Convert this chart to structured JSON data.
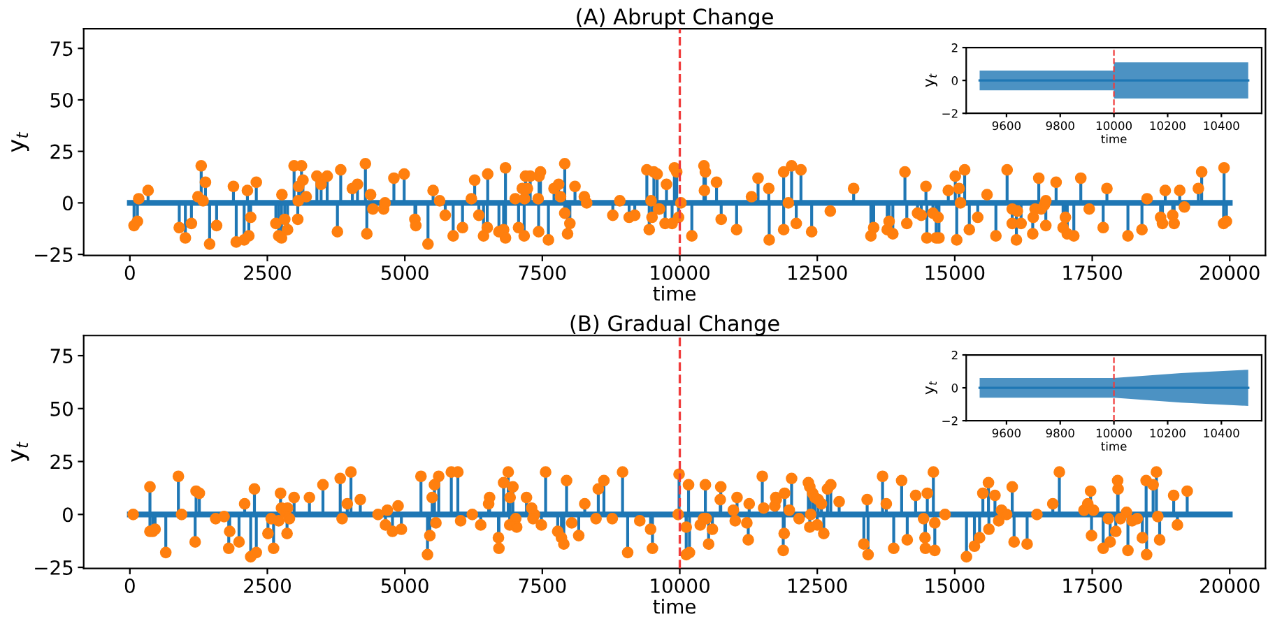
{
  "chart_data": [
    {
      "type": "line",
      "title": "(A) Abrupt Change",
      "xlabel": "time",
      "ylabel": "y$_{t}$",
      "xlim": [
        -840,
        20650
      ],
      "ylim": [
        -25.5,
        84.5
      ],
      "xticks": [
        0,
        2500,
        5000,
        7500,
        10000,
        12500,
        15000,
        17500,
        20000
      ],
      "yticks": [
        -25,
        0,
        25,
        50,
        75
      ],
      "ref_lines": [
        {
          "axis": "x",
          "value": 10000,
          "color": "#f03c3c",
          "line_style": "dashed"
        }
      ],
      "series": [
        {
          "type": "line",
          "color": "#1f77b4",
          "x": [
            0,
            20000
          ],
          "values": [
            0,
            0
          ]
        },
        {
          "type": "lollipop",
          "color": "#ff7f0e",
          "marker": "circle",
          "x": [
            76,
            137,
            161,
            331,
            898,
            1009,
            1119,
            1238,
            1297,
            1331,
            1374,
            1450,
            1577,
            1883,
            1934,
            2078,
            2137,
            2163,
            2197,
            2299,
            2655,
            2706,
            2757,
            2765,
            2816,
            2867,
            2986,
            3062,
            3070,
            3121,
            3147,
            3206,
            3053,
            3401,
            3477,
            3588,
            3774,
            3834,
            4046,
            4139,
            4283,
            4309,
            4377,
            4419,
            4614,
            4640,
            4801,
            4988,
            5183,
            5200,
            5421,
            5514,
            5633,
            5735,
            5879,
            6049,
            6210,
            6270,
            6346,
            6431,
            6499,
            6507,
            6711,
            6796,
            6830,
            6830,
            7008,
            7068,
            7136,
            7170,
            7178,
            7195,
            7229,
            7280,
            7424,
            7433,
            7441,
            7466,
            7611,
            7713,
            7797,
            7831,
            7908,
            7908,
            7959,
            8001,
            8094,
            8264,
            8307,
            8782,
            8909,
            9079,
            9181,
            9401,
            9444,
            9478,
            9495,
            9529,
            9588,
            9614,
            9631,
            9758,
            9733,
            9860,
            9902,
            9944,
            9978,
            10020,
            10219,
            10439,
            10465,
            10448,
            10668,
            10753,
            11033,
            11304,
            11423,
            11618,
            11626,
            11889,
            11889,
            11974,
            12033,
            12118,
            12203,
            12398,
            12737,
            13161,
            13475,
            13526,
            13772,
            13806,
            13874,
            14094,
            14128,
            14323,
            14391,
            14476,
            14493,
            14603,
            14662,
            14696,
            14713,
            14883,
            15010,
            15036,
            15078,
            15104,
            15180,
            15265,
            15418,
            15587,
            15748,
            15952,
            16045,
            16045,
            16121,
            16138,
            16206,
            16418,
            16427,
            16461,
            16528,
            16571,
            16630,
            16656,
            16656,
            16843,
            16970,
            17012,
            17046,
            17165,
            17292,
            17445,
            17699,
            17767,
            18149,
            18404,
            18497,
            18743,
            18777,
            18828,
            18963,
            18989,
            19091,
            19176,
            19430,
            19490,
            19897,
            19889,
            19940
          ],
          "values": [
            -11,
            -9,
            2,
            6,
            -12,
            -17,
            -10,
            3,
            18,
            1,
            10,
            -20,
            -11,
            8,
            -19,
            -18,
            6,
            -16,
            -7,
            10,
            -10,
            -16,
            -17,
            4,
            -8,
            -13,
            18,
            1,
            8,
            18,
            11,
            3,
            -8,
            13,
            9,
            13,
            -14,
            16,
            7,
            9,
            19,
            -15,
            4,
            -3,
            -3,
            0,
            12,
            14,
            -8,
            -11,
            -20,
            6,
            1,
            -6,
            -16,
            -12,
            2,
            11,
            -6,
            -16,
            -12,
            14,
            -14,
            -13,
            17,
            -17,
            2,
            -12,
            7,
            -16,
            2,
            13,
            7,
            13,
            2,
            -14,
            13,
            15,
            -18,
            7,
            9,
            3,
            19,
            -5,
            -15,
            -10,
            8,
            3,
            0,
            -6,
            1,
            -7,
            -6,
            16,
            -13,
            1,
            -7,
            15,
            14,
            -3,
            -3,
            9,
            -10,
            -10,
            17,
            15,
            -7,
            0,
            -16,
            18,
            15,
            6,
            10,
            -8,
            -13,
            3,
            12,
            7,
            -18,
            15,
            -13,
            0,
            18,
            -10,
            16,
            -14,
            -4,
            7,
            -16,
            -12,
            -13,
            -9,
            -15,
            15,
            -10,
            -5,
            -6,
            8,
            -17,
            -5,
            -17,
            -7,
            -17,
            6,
            13,
            -18,
            7,
            0,
            16,
            -13,
            -7,
            4,
            -16,
            16,
            -3,
            -10,
            -18,
            -4,
            -10,
            -15,
            -7,
            -3,
            12,
            -3,
            -1,
            1,
            -11,
            10,
            -12,
            -7,
            -15,
            -16,
            12,
            -3,
            -12,
            7,
            -16,
            -13,
            2,
            -7,
            -10,
            6,
            -6,
            -10,
            6,
            -2,
            7,
            15,
            17,
            -10,
            -9
          ]
        }
      ]
    },
    {
      "type": "line",
      "xlabel": "time",
      "ylabel": "y$_{t}$",
      "xlim": [
        9450,
        10550
      ],
      "ylim": [
        -2,
        2
      ],
      "xticks": [
        9600,
        9800,
        10000,
        10200,
        10400
      ],
      "yticks": [
        -2,
        0,
        2
      ],
      "ref_lines": [
        {
          "axis": "x",
          "value": 10000,
          "color": "#f03c3c",
          "line_style": "dashed"
        }
      ],
      "series": [
        {
          "type": "line",
          "color": "#1f77b4",
          "x": [
            9500,
            9999,
            10000,
            10500
          ],
          "values": [
            0,
            0,
            0,
            0
          ],
          "lower": [
            -0.6,
            -0.6,
            -1.1,
            -1.1
          ],
          "upper": [
            0.6,
            0.6,
            1.1,
            1.1
          ]
        }
      ]
    },
    {
      "type": "line",
      "title": "(B) Gradual Change",
      "xlabel": "time",
      "ylabel": "y$_{t}$",
      "xlim": [
        -840,
        20650
      ],
      "ylim": [
        -25.5,
        84.5
      ],
      "xticks": [
        0,
        2500,
        5000,
        7500,
        10000,
        12500,
        15000,
        17500,
        20000
      ],
      "yticks": [
        -25,
        0,
        25,
        50,
        75
      ],
      "ref_lines": [
        {
          "axis": "x",
          "value": 10000,
          "color": "#f03c3c",
          "line_style": "dashed"
        }
      ],
      "series": [
        {
          "type": "line",
          "color": "#1f77b4",
          "x": [
            0,
            20000
          ],
          "values": [
            0,
            0
          ]
        },
        {
          "type": "lollipop",
          "color": "#ff7f0e",
          "marker": "circle",
          "x": [
            60,
            365,
            365,
            416,
            458,
            653,
            882,
            941,
            1187,
            1204,
            1263,
            1560,
            1713,
            1815,
            1798,
            1985,
            2087,
            2197,
            2265,
            2299,
            2511,
            2570,
            2613,
            2706,
            2740,
            2757,
            2825,
            2867,
            2901,
            2858,
            2986,
            3265,
            3511,
            3825,
            3859,
            3953,
            4020,
            4190,
            4512,
            4648,
            4682,
            4775,
            4877,
            4937,
            5293,
            5412,
            5455,
            5497,
            5539,
            5565,
            5616,
            5845,
            5964,
            6015,
            6227,
            6380,
            6524,
            6541,
            6702,
            6711,
            6796,
            6880,
            6914,
            6965,
            6907,
            7016,
            7034,
            7212,
            7305,
            7356,
            7331,
            7483,
            7560,
            7780,
            7848,
            7891,
            7941,
            8035,
            8162,
            8272,
            8476,
            8518,
            8620,
            8772,
            8959,
            9052,
            9272,
            9469,
            9503,
            9987,
            9970,
            10117,
            10117,
            10176,
            10159,
            10372,
            10431,
            10482,
            10465,
            10524,
            10592,
            10736,
            10745,
            10974,
            11008,
            11041,
            11219,
            11245,
            11262,
            11500,
            11525,
            11728,
            11745,
            11754,
            11881,
            11898,
            11906,
            11991,
            12033,
            12169,
            12338,
            12364,
            12381,
            12364,
            12415,
            12457,
            12499,
            12516,
            12576,
            12618,
            12686,
            12745,
            12898,
            13347,
            13407,
            13424,
            13687,
            13755,
            13890,
            14034,
            14136,
            14289,
            14433,
            14459,
            14467,
            14501,
            14611,
            14637,
            14637,
            14823,
            15213,
            15358,
            15451,
            15511,
            15613,
            15621,
            15731,
            15799,
            15850,
            15943,
            16045,
            16079,
            16316,
            16494,
            16783,
            16902,
            17351,
            17419,
            17470,
            17487,
            17521,
            17699,
            17792,
            17826,
            17928,
            17962,
            17970,
            18013,
            18123,
            18149,
            18225,
            18318,
            18411,
            18480,
            18489,
            18607,
            18667,
            18692,
            18726,
            18981,
            19049,
            19227
          ],
          "values": [
            0,
            13,
            -8,
            -8,
            -7,
            -18,
            18,
            0,
            -13,
            11,
            10,
            -2,
            -1,
            -8,
            -16,
            -13,
            5,
            -20,
            12,
            -18,
            -9,
            -2,
            -16,
            -3,
            10,
            3,
            1,
            3,
            -2,
            -9,
            8,
            8,
            14,
            17,
            -2,
            5,
            20,
            7,
            0,
            -5,
            2,
            -8,
            4,
            -7,
            18,
            -19,
            -10,
            8,
            14,
            -4,
            18,
            20,
            20,
            -3,
            0,
            -5,
            5,
            8,
            -11,
            -16,
            15,
            20,
            8,
            13,
            -5,
            -2,
            -6,
            8,
            3,
            0,
            -2,
            -5,
            20,
            -8,
            -11,
            -14,
            16,
            -4,
            -10,
            5,
            -2,
            12,
            16,
            -2,
            20,
            -18,
            -3,
            -7,
            -16,
            19,
            0,
            -6,
            -19,
            -18,
            14,
            -5,
            -2,
            -2,
            14,
            -14,
            -7,
            7,
            13,
            2,
            -3,
            8,
            -4,
            -12,
            5,
            18,
            3,
            4,
            8,
            7,
            -17,
            -9,
            10,
            2,
            17,
            -2,
            15,
            13,
            0,
            -6,
            10,
            8,
            -5,
            7,
            5,
            -9,
            12,
            14,
            6,
            -14,
            7,
            -19,
            18,
            5,
            -16,
            16,
            -12,
            9,
            -2,
            -11,
            -16,
            10,
            20,
            -4,
            -17,
            0,
            -20,
            -15,
            -11,
            10,
            15,
            -7,
            9,
            -3,
            2,
            0,
            13,
            -13,
            -14,
            0,
            5,
            20,
            2,
            5,
            11,
            -10,
            2,
            -16,
            -2,
            -13,
            -8,
            16,
            12,
            -2,
            1,
            -17,
            -3,
            -2,
            -11,
            16,
            -19,
            14,
            20,
            -1,
            -12,
            9,
            -5,
            11
          ]
        }
      ]
    },
    {
      "type": "line",
      "xlabel": "time",
      "ylabel": "y$_{t}$",
      "xlim": [
        9450,
        10550
      ],
      "ylim": [
        -2,
        2
      ],
      "xticks": [
        9600,
        9800,
        10000,
        10200,
        10400
      ],
      "yticks": [
        -2,
        0,
        2
      ],
      "ref_lines": [
        {
          "axis": "x",
          "value": 10000,
          "color": "#f03c3c",
          "line_style": "dashed"
        }
      ],
      "series": [
        {
          "type": "line",
          "color": "#1f77b4",
          "x": [
            9500,
            10000,
            10250,
            10500
          ],
          "values": [
            0,
            0,
            0,
            0
          ],
          "lower": [
            -0.6,
            -0.6,
            -0.9,
            -1.1
          ],
          "upper": [
            0.6,
            0.6,
            0.9,
            1.1
          ]
        }
      ]
    }
  ]
}
